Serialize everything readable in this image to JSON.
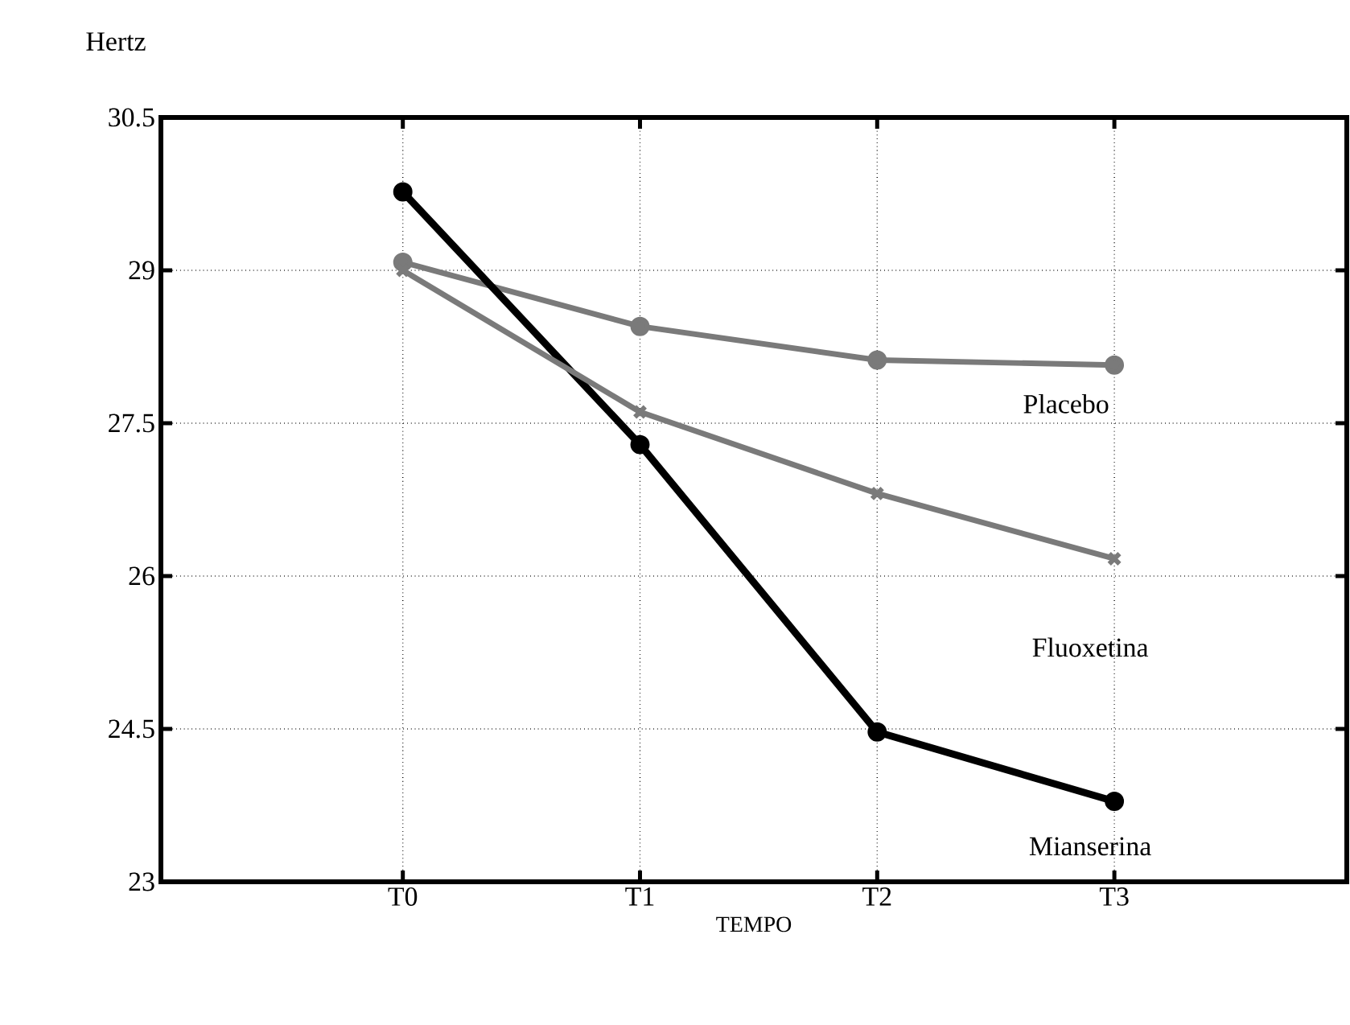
{
  "chart_data": {
    "type": "line",
    "xlabel": "TEMPO",
    "ylabel": "Hertz",
    "categories": [
      "T0",
      "T1",
      "T2",
      "T3"
    ],
    "series": [
      {
        "name": "Placebo",
        "color": "#7a7a7a",
        "marker": "circle",
        "values": [
          29.08,
          28.45,
          28.12,
          28.07
        ]
      },
      {
        "name": "Fluoxetina",
        "color": "#7a7a7a",
        "marker": "cross",
        "values": [
          29.0,
          27.61,
          26.81,
          26.17
        ]
      },
      {
        "name": "Mianserina",
        "color": "#000000",
        "marker": "circle",
        "values": [
          29.77,
          27.29,
          24.47,
          23.79
        ]
      }
    ],
    "ylim": [
      23,
      30.5
    ],
    "yticks": [
      23,
      24.5,
      26,
      27.5,
      29,
      30.5
    ],
    "grid": true,
    "line_style": "solid"
  }
}
